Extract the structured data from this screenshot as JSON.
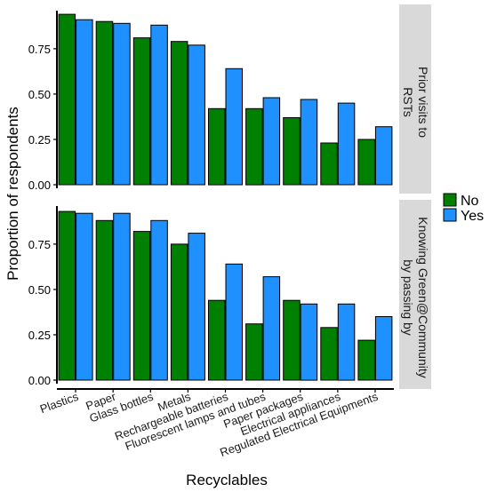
{
  "chart_data": {
    "type": "bar",
    "xlabel": "Recyclables",
    "ylabel": "Proportion of respondents",
    "ylim": [
      0,
      1
    ],
    "yticks": [
      "0.00",
      "0.25",
      "0.50",
      "0.75"
    ],
    "categories": [
      "Plastics",
      "Paper",
      "Glass bottles",
      "Metals",
      "Rechargeable batteries",
      "Fluorescent lamps and tubes",
      "Paper packages",
      "Electrical appliances",
      "Regulated Electrical Equipments"
    ],
    "legend": {
      "position": "right",
      "entries": [
        {
          "name": "No",
          "color": "#008000"
        },
        {
          "name": "Yes",
          "color": "#1E90FF"
        }
      ]
    },
    "panels": [
      {
        "strip_lines": [
          "Prior visits to",
          "RSTs"
        ],
        "series": [
          {
            "name": "No",
            "values": [
              0.94,
              0.9,
              0.81,
              0.79,
              0.42,
              0.42,
              0.37,
              0.23,
              0.25
            ]
          },
          {
            "name": "Yes",
            "values": [
              0.91,
              0.89,
              0.88,
              0.77,
              0.64,
              0.48,
              0.47,
              0.45,
              0.32
            ]
          }
        ]
      },
      {
        "strip_lines": [
          "Knowing Green@Community",
          "by passing by"
        ],
        "series": [
          {
            "name": "No",
            "values": [
              0.93,
              0.88,
              0.82,
              0.75,
              0.44,
              0.31,
              0.44,
              0.29,
              0.22
            ]
          },
          {
            "name": "Yes",
            "values": [
              0.92,
              0.92,
              0.88,
              0.81,
              0.64,
              0.57,
              0.42,
              0.42,
              0.35
            ]
          }
        ]
      }
    ]
  }
}
